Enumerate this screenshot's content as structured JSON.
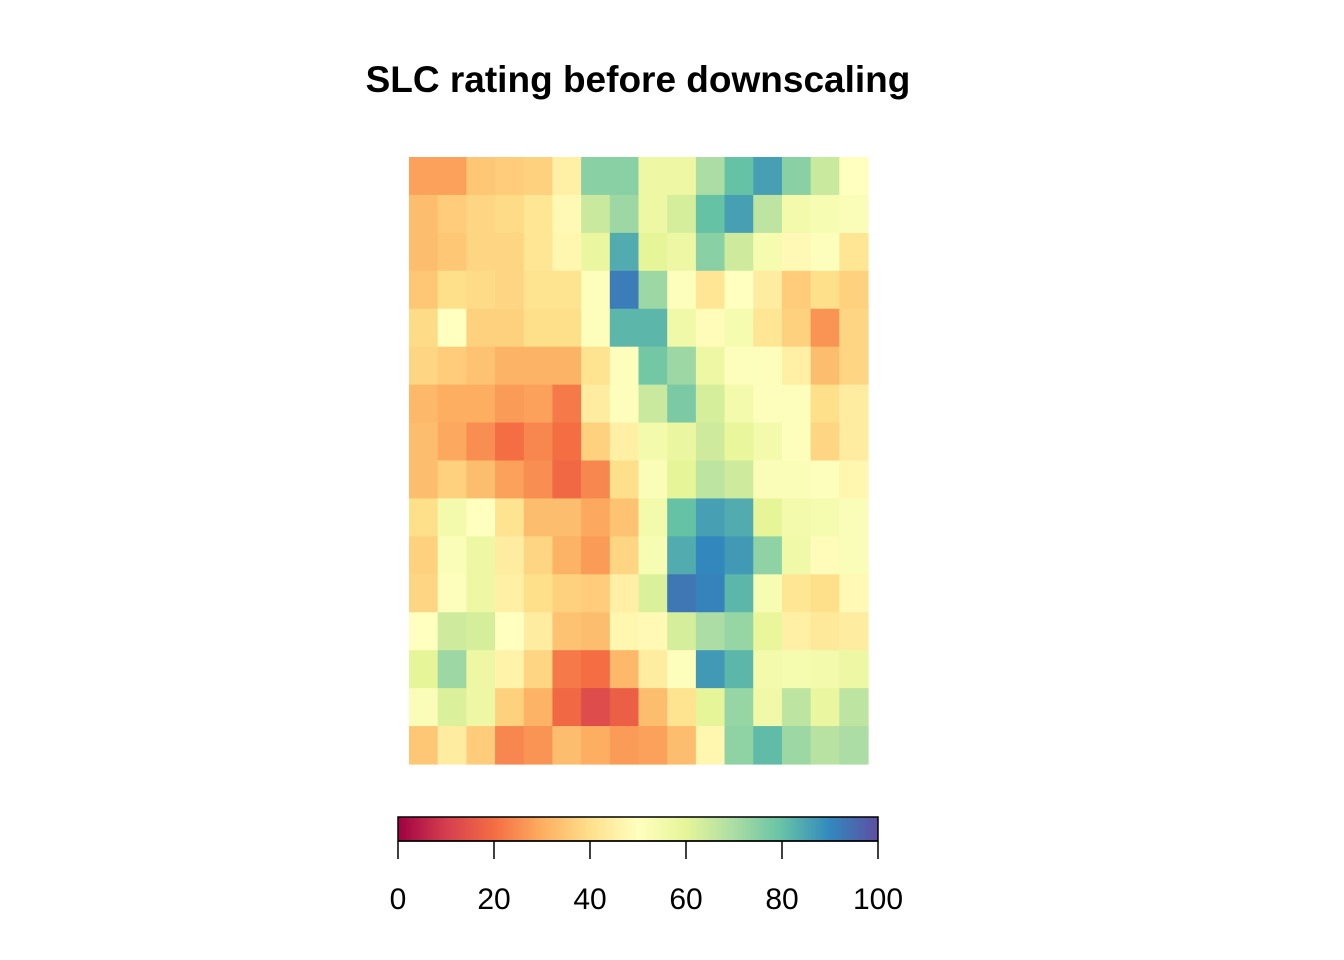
{
  "chart_data": {
    "type": "heatmap",
    "title": "SLC rating before downscaling",
    "xlabel": "",
    "ylabel": "",
    "rows": 16,
    "cols": 16,
    "values": [
      [
        28,
        28,
        35,
        36,
        37,
        45,
        75,
        75,
        57,
        57,
        70,
        80,
        86,
        75,
        65,
        50
      ],
      [
        33,
        36,
        38,
        39,
        42,
        48,
        65,
        72,
        57,
        63,
        80,
        86,
        67,
        55,
        53,
        52
      ],
      [
        33,
        35,
        38,
        38,
        42,
        47,
        58,
        84,
        60,
        57,
        75,
        64,
        54,
        48,
        51,
        42
      ],
      [
        35,
        40,
        39,
        38,
        41,
        41,
        51,
        92,
        72,
        51,
        42,
        50,
        44,
        36,
        40,
        37
      ],
      [
        39,
        50,
        37,
        37,
        40,
        40,
        51,
        82,
        82,
        56,
        49,
        54,
        42,
        37,
        26,
        38
      ],
      [
        38,
        36,
        34,
        31,
        31,
        31,
        41,
        51,
        78,
        72,
        57,
        51,
        51,
        45,
        33,
        38
      ],
      [
        32,
        30,
        30,
        27,
        28,
        22,
        44,
        51,
        65,
        77,
        63,
        55,
        51,
        51,
        40,
        44
      ],
      [
        33,
        29,
        25,
        20,
        24,
        20,
        37,
        45,
        55,
        58,
        64,
        59,
        55,
        51,
        38,
        44
      ],
      [
        33,
        37,
        33,
        28,
        25,
        19,
        24,
        40,
        52,
        60,
        67,
        64,
        52,
        52,
        51,
        47
      ],
      [
        40,
        55,
        50,
        41,
        33,
        33,
        29,
        34,
        55,
        80,
        86,
        84,
        60,
        55,
        54,
        52
      ],
      [
        37,
        52,
        57,
        44,
        38,
        31,
        27,
        38,
        53,
        84,
        90,
        87,
        74,
        56,
        49,
        52
      ],
      [
        38,
        51,
        57,
        45,
        40,
        37,
        36,
        45,
        62,
        93,
        91,
        82,
        53,
        42,
        40,
        48
      ],
      [
        50,
        64,
        63,
        50,
        44,
        34,
        33,
        47,
        48,
        63,
        70,
        73,
        59,
        45,
        43,
        44
      ],
      [
        60,
        72,
        57,
        46,
        38,
        22,
        20,
        32,
        44,
        51,
        87,
        82,
        55,
        54,
        55,
        57
      ],
      [
        52,
        62,
        57,
        37,
        31,
        19,
        13,
        17,
        33,
        41,
        60,
        73,
        56,
        67,
        58,
        67
      ],
      [
        35,
        44,
        36,
        24,
        26,
        33,
        30,
        27,
        28,
        33,
        47,
        74,
        81,
        72,
        68,
        70
      ]
    ],
    "colorbar": {
      "range": [
        0,
        100
      ],
      "tick_labels": [
        "0",
        "20",
        "40",
        "60",
        "80",
        "100"
      ],
      "tick_values": [
        0,
        20,
        40,
        60,
        80,
        100
      ],
      "palette": [
        "#9e0142",
        "#d53e4f",
        "#f46d43",
        "#fdae61",
        "#fee08b",
        "#ffffbf",
        "#e6f598",
        "#abdda4",
        "#66c2a5",
        "#3288bd",
        "#5e4fa2"
      ],
      "palette_name": "Spectral"
    },
    "legend_placement": "bottom",
    "grid": false
  }
}
